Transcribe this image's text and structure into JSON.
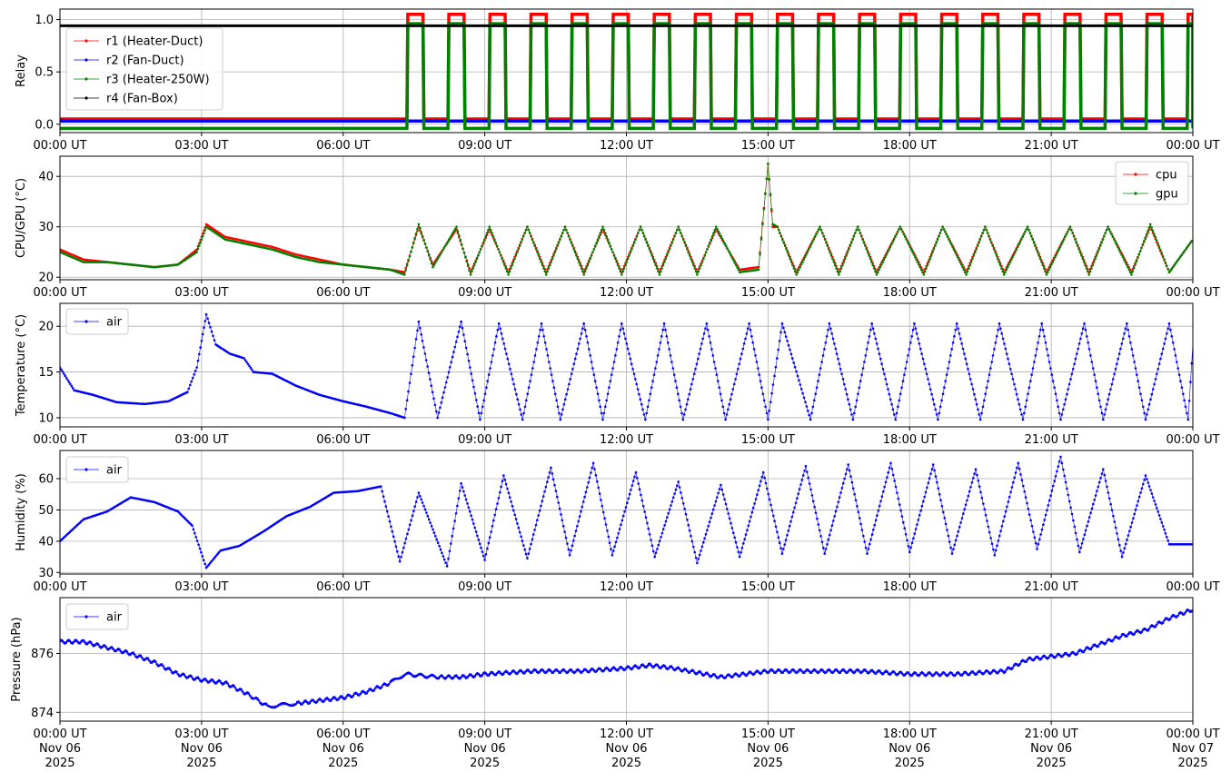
{
  "chart_data": [
    {
      "type": "line",
      "ylabel": "Relay",
      "ylim": [
        -0.08,
        1.1
      ],
      "yticks": [
        0.0,
        0.5,
        1.0
      ],
      "ytick_labels": [
        "0.0",
        "0.5",
        "1.0"
      ],
      "x_range_hours": [
        0,
        24
      ],
      "x": [
        0,
        7.3,
        7.4,
        7.7,
        7.8,
        8.3,
        8.4,
        8.7,
        8.8,
        9.3,
        9.4,
        9.7
      ],
      "x_note_hidden": "",
      "legend": "top-left",
      "grid": true,
      "series": [
        {
          "name": "r1 (Heater-Duct)",
          "color": "#ff0000",
          "values": [
            0.05,
            0.05,
            1.05,
            1.05,
            0.05,
            0.05,
            1.05,
            1.05,
            0.05,
            0.05,
            1.05,
            1.05
          ]
        },
        {
          "name": "r2 (Fan-Duct)",
          "color": "#0000ff",
          "values": [
            0.03,
            0.03,
            0.03,
            0.03,
            0.03,
            0.03,
            0.03,
            0.03,
            0.03,
            0.03,
            0.03,
            0.03
          ]
        },
        {
          "name": "r3 (Heater-250W)",
          "color": "#008000",
          "values": [
            -0.04,
            -0.04,
            0.96,
            0.96,
            -0.04,
            -0.04,
            0.96,
            0.96,
            -0.04,
            -0.04,
            0.96,
            0.96
          ]
        },
        {
          "name": "r4 (Fan-Box)",
          "color": "#000000",
          "values": [
            0.94,
            0.94,
            0.94,
            0.94,
            0.94,
            0.94,
            0.94,
            0.94,
            0.94,
            0.94,
            0.94,
            0.94
          ]
        }
      ],
      "cycle": {
        "start_hour": 7.35,
        "period_hours": 0.87,
        "on_hours": 0.34,
        "end_hour": 24
      }
    },
    {
      "type": "line",
      "ylabel": "CPU/GPU (°C)",
      "ylim": [
        19.5,
        44
      ],
      "yticks": [
        20,
        30,
        40
      ],
      "ytick_labels": [
        "20",
        "30",
        "40"
      ],
      "legend": "top-right",
      "grid": true,
      "x": [
        0,
        0.5,
        1.0,
        1.5,
        2.0,
        2.5,
        2.9,
        3.1,
        3.5,
        4.0,
        4.5,
        5.0,
        5.5,
        6.0,
        6.5,
        7.0,
        7.3,
        7.6,
        7.9,
        8.4,
        8.7,
        9.1,
        9.5,
        9.9,
        10.3,
        10.7,
        11.1,
        11.5,
        11.9,
        12.3,
        12.7,
        13.1,
        13.5,
        13.9,
        14.4,
        14.8,
        15.0,
        15.1,
        15.2,
        15.6,
        16.1,
        16.5,
        16.9,
        17.3,
        17.8,
        18.3,
        18.7,
        19.2,
        19.6,
        20.0,
        20.5,
        20.9,
        21.4,
        21.8,
        22.2,
        22.7,
        23.1,
        23.5,
        24.0
      ],
      "series": [
        {
          "name": "cpu",
          "color": "#ff0000",
          "values": [
            25.5,
            23.5,
            23.0,
            22.5,
            22.0,
            22.5,
            25.5,
            30.5,
            28.0,
            27.0,
            26.0,
            24.5,
            23.5,
            22.5,
            22.0,
            21.5,
            21.0,
            30.0,
            22.5,
            29.5,
            21.0,
            29.5,
            21.0,
            30.0,
            21.0,
            30.0,
            21.0,
            29.5,
            21.0,
            30.0,
            21.0,
            30.0,
            21.0,
            29.5,
            21.5,
            22.0,
            42.5,
            30.0,
            30.0,
            21.0,
            30.0,
            21.0,
            30.0,
            21.0,
            30.0,
            21.0,
            30.0,
            21.0,
            30.0,
            21.0,
            30.0,
            21.0,
            30.0,
            21.0,
            30.0,
            21.0,
            30.0,
            21.0,
            27.5
          ]
        },
        {
          "name": "gpu",
          "color": "#008000",
          "values": [
            25.0,
            23.0,
            23.0,
            22.5,
            22.0,
            22.5,
            25.0,
            30.0,
            27.5,
            26.5,
            25.5,
            24.0,
            23.0,
            22.5,
            22.0,
            21.5,
            20.5,
            30.5,
            22.0,
            30.0,
            20.5,
            30.0,
            20.5,
            30.0,
            20.5,
            30.0,
            20.5,
            30.0,
            20.5,
            30.0,
            20.5,
            30.0,
            20.5,
            30.0,
            21.0,
            21.5,
            42.5,
            30.5,
            30.0,
            20.5,
            30.0,
            20.5,
            30.0,
            20.5,
            30.0,
            20.5,
            30.0,
            20.5,
            30.0,
            20.5,
            30.0,
            20.5,
            30.0,
            20.5,
            30.0,
            20.5,
            30.5,
            21.0,
            27.5
          ]
        }
      ]
    },
    {
      "type": "line",
      "ylabel": "Temperature (°C)",
      "ylim": [
        9,
        22.5
      ],
      "yticks": [
        10,
        15,
        20
      ],
      "ytick_labels": [
        "10",
        "15",
        "20"
      ],
      "legend": "top-left",
      "grid": true,
      "x": [
        0,
        0.3,
        0.7,
        1.2,
        1.8,
        2.3,
        2.7,
        2.9,
        3.1,
        3.3,
        3.6,
        3.9,
        4.1,
        4.5,
        5.0,
        5.5,
        6.0,
        6.5,
        7.0,
        7.3,
        7.6,
        8.0,
        8.5,
        8.9,
        9.3,
        9.8,
        10.2,
        10.6,
        11.1,
        11.5,
        11.9,
        12.4,
        12.8,
        13.2,
        13.7,
        14.1,
        14.6,
        15.0,
        15.3,
        15.9,
        16.3,
        16.8,
        17.2,
        17.7,
        18.1,
        18.6,
        19.0,
        19.5,
        19.9,
        20.4,
        20.8,
        21.2,
        21.7,
        22.1,
        22.6,
        23.0,
        23.5,
        23.9,
        24.0
      ],
      "series": [
        {
          "name": "air",
          "color": "#0000ff",
          "values": [
            15.5,
            13.0,
            12.5,
            11.7,
            11.5,
            11.8,
            12.8,
            15.5,
            21.3,
            18.0,
            17.0,
            16.5,
            15.0,
            14.8,
            13.5,
            12.5,
            11.8,
            11.2,
            10.5,
            10.0,
            20.5,
            10.0,
            20.5,
            9.8,
            20.3,
            9.8,
            20.3,
            9.8,
            20.3,
            9.8,
            20.3,
            9.8,
            20.3,
            9.8,
            20.3,
            9.8,
            20.3,
            9.8,
            20.3,
            9.8,
            20.3,
            9.8,
            20.3,
            9.8,
            20.3,
            9.8,
            20.3,
            9.8,
            20.3,
            9.8,
            20.3,
            9.8,
            20.3,
            9.8,
            20.3,
            9.8,
            20.3,
            9.8,
            18.0
          ]
        }
      ]
    },
    {
      "type": "line",
      "ylabel": "Humidity (%)",
      "ylim": [
        29.5,
        69
      ],
      "yticks": [
        30,
        40,
        50,
        60
      ],
      "ytick_labels": [
        "30",
        "40",
        "50",
        "60"
      ],
      "legend": "top-left",
      "grid": true,
      "x": [
        0,
        0.5,
        1.0,
        1.5,
        2.0,
        2.5,
        2.8,
        3.1,
        3.4,
        3.8,
        4.3,
        4.8,
        5.3,
        5.8,
        6.3,
        6.8,
        7.2,
        7.6,
        8.2,
        8.5,
        9.0,
        9.4,
        9.9,
        10.4,
        10.8,
        11.3,
        11.7,
        12.2,
        12.6,
        13.1,
        13.5,
        14.0,
        14.4,
        14.9,
        15.3,
        15.8,
        16.2,
        16.7,
        17.1,
        17.6,
        18.0,
        18.5,
        18.9,
        19.4,
        19.8,
        20.3,
        20.7,
        21.2,
        21.6,
        22.1,
        22.5,
        23.0,
        23.5,
        24.0
      ],
      "series": [
        {
          "name": "air",
          "color": "#0000ff",
          "values": [
            40.0,
            47.0,
            49.5,
            54.0,
            52.5,
            49.5,
            45.0,
            31.5,
            37.0,
            38.5,
            43.0,
            48.0,
            51.0,
            55.5,
            56.0,
            57.5,
            33.5,
            55.5,
            32.0,
            58.5,
            34.0,
            61.0,
            34.5,
            63.5,
            35.5,
            65.0,
            35.5,
            62.0,
            35.0,
            59.0,
            33.0,
            58.0,
            35.0,
            62.0,
            36.0,
            64.0,
            36.0,
            64.5,
            36.0,
            65.0,
            36.5,
            64.5,
            36.0,
            63.0,
            35.5,
            65.0,
            37.5,
            67.0,
            36.5,
            63.0,
            35.0,
            61.0,
            39.0,
            39.0
          ]
        }
      ]
    },
    {
      "type": "line",
      "ylabel": "Pressure (hPa)",
      "ylim": [
        873.7,
        877.9
      ],
      "yticks": [
        874,
        876
      ],
      "ytick_labels": [
        "874",
        "876"
      ],
      "legend": "top-left",
      "grid": true,
      "x": [
        0,
        0.5,
        1.0,
        1.5,
        2.0,
        2.5,
        3.0,
        3.5,
        4.0,
        4.4,
        5.0,
        5.5,
        6.0,
        6.5,
        7.0,
        7.3,
        8.0,
        8.5,
        9.0,
        10.0,
        11.0,
        12.0,
        12.5,
        13.0,
        14.0,
        14.5,
        15.0,
        16.0,
        17.0,
        18.0,
        19.0,
        20.0,
        20.5,
        21.0,
        21.5,
        22.0,
        22.5,
        23.0,
        23.5,
        24.0
      ],
      "series": [
        {
          "name": "air",
          "color": "#0000ff",
          "values": [
            876.4,
            876.4,
            876.2,
            876.0,
            875.7,
            875.3,
            875.1,
            875.0,
            874.6,
            874.2,
            874.3,
            874.4,
            874.5,
            874.7,
            875.0,
            875.3,
            875.2,
            875.2,
            875.3,
            875.4,
            875.4,
            875.5,
            875.6,
            875.5,
            875.2,
            875.3,
            875.4,
            875.4,
            875.4,
            875.3,
            875.3,
            875.4,
            875.8,
            875.9,
            876.0,
            876.3,
            876.6,
            876.8,
            877.2,
            877.5
          ]
        }
      ]
    }
  ],
  "x_axis": {
    "tick_labels": [
      "00:00 UT",
      "03:00 UT",
      "06:00 UT",
      "09:00 UT",
      "12:00 UT",
      "15:00 UT",
      "18:00 UT",
      "21:00 UT",
      "00:00 UT"
    ],
    "date_lines": [
      "Nov 06",
      "Nov 06",
      "Nov 06",
      "Nov 06",
      "Nov 06",
      "Nov 06",
      "Nov 06",
      "Nov 06",
      "Nov 07"
    ],
    "year_lines": [
      "2025",
      "2025",
      "2025",
      "2025",
      "2025",
      "2025",
      "2025",
      "2025",
      "2025"
    ]
  }
}
